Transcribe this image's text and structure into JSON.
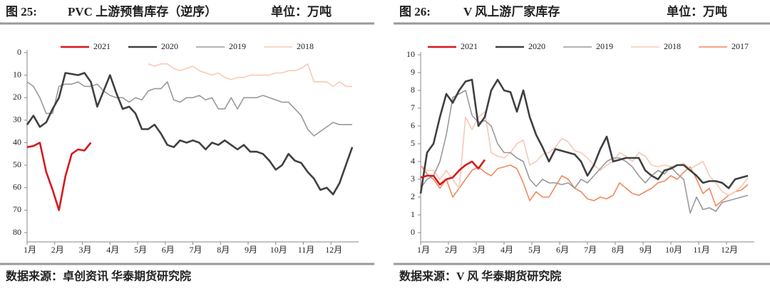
{
  "chart_data": [
    {
      "type": "line",
      "label": "图 25:",
      "title": "PVC 上游预售库存（逆序）",
      "unit": "单位：万吨",
      "source": "数据来源：卓创资讯 华泰期货研究院",
      "y_inverted": true,
      "ylim": [
        0,
        80
      ],
      "yticks": [
        0,
        10,
        20,
        30,
        40,
        50,
        60,
        70,
        80
      ],
      "xlim": [
        1,
        53
      ],
      "xticks": [
        {
          "value": 1,
          "label": "1月"
        },
        {
          "value": 5.33,
          "label": "2月"
        },
        {
          "value": 9.67,
          "label": "3月"
        },
        {
          "value": 14,
          "label": "4月"
        },
        {
          "value": 18.33,
          "label": "5月"
        },
        {
          "value": 22.67,
          "label": "6月"
        },
        {
          "value": 27,
          "label": "7月"
        },
        {
          "value": 31.33,
          "label": "8月"
        },
        {
          "value": 35.67,
          "label": "9月"
        },
        {
          "value": 40,
          "label": "10月"
        },
        {
          "value": 44.33,
          "label": "11月"
        },
        {
          "value": 48.67,
          "label": "12月"
        }
      ],
      "x": [
        1,
        2,
        3,
        4,
        5,
        6,
        7,
        8,
        9,
        10,
        11,
        12,
        13,
        14,
        15,
        16,
        17,
        18,
        19,
        20,
        21,
        22,
        23,
        24,
        25,
        26,
        27,
        28,
        29,
        30,
        31,
        32,
        33,
        34,
        35,
        36,
        37,
        38,
        39,
        40,
        41,
        42,
        43,
        44,
        45,
        46,
        47,
        48,
        49,
        50,
        51,
        52
      ],
      "series": [
        {
          "name": "2021",
          "color": "#d7191c",
          "values": [
            42,
            41.5,
            40,
            53,
            61,
            70,
            55,
            45,
            43,
            43.5,
            40,
            null,
            null,
            null,
            null,
            null,
            null,
            null,
            null,
            null,
            null,
            null,
            null,
            null,
            null,
            null,
            null,
            null,
            null,
            null,
            null,
            null,
            null,
            null,
            null,
            null,
            null,
            null,
            null,
            null,
            null,
            null,
            null,
            null,
            null,
            null,
            null,
            null,
            null,
            null,
            null,
            null
          ]
        },
        {
          "name": "2020",
          "color": "#404040",
          "values": [
            32,
            28,
            33,
            31,
            25,
            20,
            9,
            9.5,
            10,
            9,
            13,
            24,
            17,
            10,
            18,
            25,
            24,
            27,
            34,
            34,
            32,
            36,
            41,
            42,
            39,
            40,
            39,
            40,
            43,
            40,
            41,
            39,
            41,
            43,
            41,
            44,
            44,
            45,
            48,
            52,
            50,
            45,
            48,
            49,
            53,
            56,
            61,
            60,
            63,
            58,
            50,
            42
          ]
        },
        {
          "name": "2019",
          "color": "#999999",
          "values": [
            13,
            15,
            20,
            27,
            27,
            15,
            14,
            14,
            13,
            15,
            15,
            14,
            17,
            19,
            20,
            20,
            22,
            20,
            21,
            17,
            16,
            16,
            13,
            21,
            22,
            20,
            20,
            19,
            21,
            20,
            25,
            25,
            20,
            25,
            20,
            20,
            20,
            19,
            20,
            21,
            22,
            22,
            25,
            28,
            34,
            37,
            35,
            33,
            31,
            32,
            32,
            32
          ]
        },
        {
          "name": "2018",
          "color": "#f9c9b6",
          "values": [
            null,
            null,
            null,
            null,
            null,
            null,
            null,
            null,
            null,
            null,
            null,
            null,
            null,
            null,
            null,
            null,
            null,
            null,
            null,
            5,
            6,
            5,
            5,
            7,
            8,
            7,
            6,
            8,
            9,
            10,
            9,
            11,
            12,
            11,
            11,
            10,
            10,
            10,
            10,
            9,
            9,
            8,
            8,
            7,
            5,
            13,
            13,
            13,
            15,
            13,
            15,
            15
          ]
        }
      ]
    },
    {
      "type": "line",
      "label": "图 26:",
      "title": "V 风上游厂家库存",
      "unit": "单位：万吨",
      "source": "数据来源：V 风 华泰期货研究院",
      "ylim": [
        0,
        10
      ],
      "yticks": [
        0,
        1,
        2,
        3,
        4,
        5,
        6,
        7,
        8,
        9,
        10
      ],
      "xlim": [
        1,
        53
      ],
      "xticks": [
        {
          "value": 1,
          "label": "1月"
        },
        {
          "value": 5.33,
          "label": "2月"
        },
        {
          "value": 9.67,
          "label": "3月"
        },
        {
          "value": 14,
          "label": "4月"
        },
        {
          "value": 18.33,
          "label": "5月"
        },
        {
          "value": 22.67,
          "label": "6月"
        },
        {
          "value": 27,
          "label": "7月"
        },
        {
          "value": 31.33,
          "label": "8月"
        },
        {
          "value": 35.67,
          "label": "9月"
        },
        {
          "value": 40,
          "label": "10月"
        },
        {
          "value": 44.33,
          "label": "11月"
        },
        {
          "value": 48.67,
          "label": "12月"
        }
      ],
      "x": [
        1,
        2,
        3,
        4,
        5,
        6,
        7,
        8,
        9,
        10,
        11,
        12,
        13,
        14,
        15,
        16,
        17,
        18,
        19,
        20,
        21,
        22,
        23,
        24,
        25,
        26,
        27,
        28,
        29,
        30,
        31,
        32,
        33,
        34,
        35,
        36,
        37,
        38,
        39,
        40,
        41,
        42,
        43,
        44,
        45,
        46,
        47,
        48,
        49,
        50,
        51,
        52
      ],
      "series": [
        {
          "name": "2021",
          "color": "#d7191c",
          "values": [
            3.1,
            3.2,
            3.2,
            2.7,
            3,
            3.1,
            3.5,
            3.8,
            4,
            3.6,
            4.1,
            null,
            null,
            null,
            null,
            null,
            null,
            null,
            null,
            null,
            null,
            null,
            null,
            null,
            null,
            null,
            null,
            null,
            null,
            null,
            null,
            null,
            null,
            null,
            null,
            null,
            null,
            null,
            null,
            null,
            null,
            null,
            null,
            null,
            null,
            null,
            null,
            null,
            null,
            null,
            null,
            null
          ]
        },
        {
          "name": "2020",
          "color": "#404040",
          "values": [
            2.2,
            4.5,
            5,
            6.5,
            7.8,
            7.3,
            8,
            8.5,
            8.6,
            6,
            6.5,
            8,
            8.6,
            8,
            7.9,
            6.8,
            8,
            6.5,
            5.5,
            4.8,
            4,
            4.7,
            4.6,
            4.5,
            4.4,
            4,
            3.2,
            3.8,
            4.7,
            5.4,
            4,
            4.1,
            4.2,
            4.2,
            4.2,
            3.5,
            3.2,
            3,
            3.5,
            3.6,
            3.8,
            3.8,
            3.5,
            3.2,
            2.8,
            2.9,
            2.9,
            2.8,
            2.5,
            3,
            3.1,
            3.2
          ]
        },
        {
          "name": "2019",
          "color": "#999999",
          "values": [
            2.5,
            3,
            3.2,
            4,
            5.5,
            7.6,
            7.8,
            8,
            6.6,
            6.2,
            6.3,
            6,
            5,
            4.5,
            4.5,
            4.2,
            4,
            3,
            2.6,
            3,
            2.8,
            2.8,
            2.7,
            2.8,
            2.5,
            3,
            2.8,
            3.2,
            3.6,
            4,
            4.2,
            4.2,
            4,
            3.7,
            3.2,
            2.8,
            3.2,
            3.5,
            3.3,
            3.7,
            3.3,
            3,
            1.1,
            2,
            1.3,
            1.4,
            1.2,
            1.7,
            1.8,
            1.9,
            2,
            2.1
          ]
        },
        {
          "name": "2018",
          "color": "#f9c9b6",
          "values": [
            3.8,
            3.5,
            3.5,
            3,
            3.5,
            3,
            2.5,
            6.5,
            5.8,
            6.5,
            6.8,
            4.5,
            4.3,
            4.2,
            4.5,
            5,
            5.2,
            3.8,
            4,
            4.4,
            4.5,
            4.8,
            5.3,
            5.1,
            4.6,
            4.5,
            4.2,
            3.8,
            3.5,
            3.8,
            4,
            4.5,
            4.3,
            4,
            4.5,
            4.3,
            3.8,
            3.7,
            3.8,
            3.7,
            3.8,
            3.9,
            3.6,
            3.8,
            4,
            3.2,
            2.8,
            2.3,
            2.1,
            2.3,
            2.6,
            3.1
          ]
        },
        {
          "name": "2017",
          "color": "#f08a5d",
          "values": [
            3.8,
            3.3,
            3,
            2.5,
            3,
            2,
            2.5,
            3,
            3.5,
            3.7,
            3.4,
            3.2,
            3.6,
            3.7,
            3.8,
            3.6,
            2.8,
            1.8,
            2.3,
            2,
            2,
            2.6,
            3.2,
            3,
            2.5,
            2.3,
            1.9,
            1.8,
            2,
            1.9,
            2.1,
            2.8,
            2.5,
            2.2,
            2.1,
            2.3,
            2.5,
            2.8,
            2.9,
            3.2,
            3,
            3.4,
            3.7,
            3,
            2.2,
            2.5,
            1.5,
            1.8,
            2.1,
            2.3,
            2.4,
            2.7
          ]
        }
      ]
    }
  ]
}
